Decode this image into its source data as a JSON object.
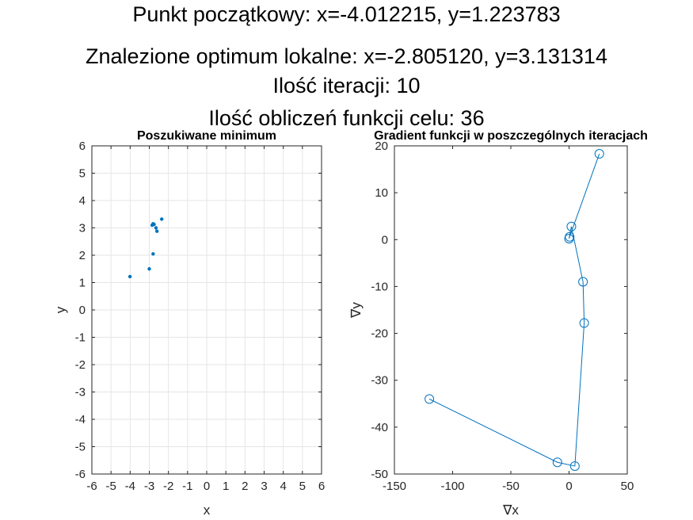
{
  "figure": {
    "title_lines": [
      "Punkt początkowy: x=-4.012215, y=1.223783",
      "Znalezione optimum lokalne: x=-2.805120, y=3.131314",
      "Ilość iteracji: 10",
      "Ilość obliczeń funkcji celu: 36"
    ]
  },
  "colors": {
    "series": "#0072BD",
    "grid": "#E6E6E6",
    "axis": "#262626"
  },
  "chart_data": [
    {
      "type": "scatter",
      "title": "Poszukiwane minimum",
      "xlabel": "x",
      "ylabel": "y",
      "xlim": [
        -6,
        6
      ],
      "ylim": [
        -6,
        6
      ],
      "xticks": [
        "-6",
        "-5",
        "-4",
        "-3",
        "-2",
        "-1",
        "0",
        "1",
        "2",
        "3",
        "4",
        "5",
        "6"
      ],
      "yticks": [
        "-6",
        "-5",
        "-4",
        "-3",
        "-2",
        "-1",
        "0",
        "1",
        "2",
        "3",
        "4",
        "5",
        "6"
      ],
      "grid": true,
      "x": [
        -4.01,
        -3.0,
        -2.8,
        -2.85,
        -2.8,
        -2.75,
        -2.65,
        -2.6,
        -2.35
      ],
      "y": [
        1.22,
        1.5,
        2.05,
        3.1,
        3.15,
        3.13,
        3.0,
        2.88,
        3.32
      ]
    },
    {
      "type": "line",
      "title": "Gradient funkcji w  poszczególnych iteracjach",
      "xlabel": "∇x",
      "ylabel": "∇y",
      "xlim": [
        -150,
        50
      ],
      "ylim": [
        -50,
        20
      ],
      "xticks": [
        "-150",
        "-100",
        "-50",
        "0",
        "50"
      ],
      "yticks": [
        "-50",
        "-40",
        "-30",
        "-20",
        "-10",
        "0",
        "10",
        "20"
      ],
      "grid": false,
      "marker": "circle",
      "x": [
        -120,
        -10,
        5,
        13,
        12,
        2,
        0,
        0.5,
        26
      ],
      "y": [
        -34,
        -47.5,
        -48.3,
        -17.8,
        -9,
        2.8,
        0.2,
        0.6,
        18.3
      ]
    }
  ]
}
